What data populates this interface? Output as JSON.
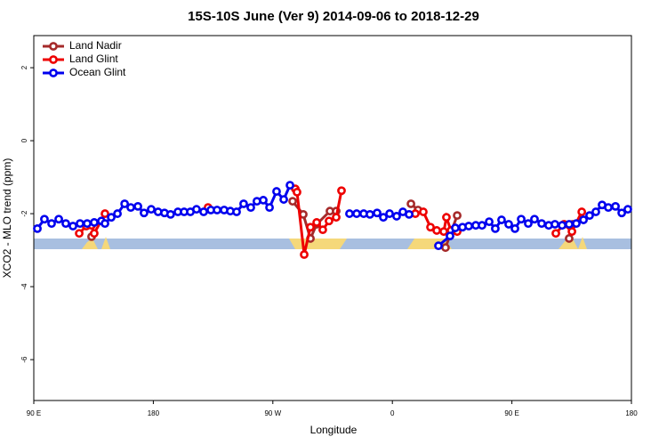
{
  "chart_data": {
    "type": "line",
    "title": "15S-10S June (Ver 9)   2014-09-06 to 2018-12-29",
    "x_label": "Longitude",
    "y_label": "XCO2 - MLO trend (ppm)",
    "xlim": [
      90,
      540
    ],
    "ylim": [
      -7.12,
      2.88
    ],
    "xticks": [
      {
        "value": 90,
        "label": "90 E"
      },
      {
        "value": 180,
        "label": "180"
      },
      {
        "value": 270,
        "label": "90 W"
      },
      {
        "value": 360,
        "label": "0"
      },
      {
        "value": 450,
        "label": "90 E"
      },
      {
        "value": 540,
        "label": "180"
      }
    ],
    "yticks": [
      -6,
      -4,
      -2,
      0,
      2
    ],
    "legend": "top-left",
    "series": [
      {
        "name": "Land Nadir",
        "color": "#a52a2a",
        "x": [
          133.5,
          200,
          284.9,
          292.9,
          298.3,
          303,
          313,
          317.7,
          340,
          374,
          379.3,
          390,
          400,
          408.8,
          450,
          493.1,
          495.8
        ],
        "values": [
          -2.63,
          null,
          -1.66,
          -2.02,
          -2.68,
          -2.29,
          -1.93,
          -1.93,
          null,
          -1.73,
          -1.9,
          null,
          -2.93,
          -2.05,
          null,
          -2.68,
          -2.29
        ]
      },
      {
        "name": "Land Glint",
        "color": "#ee0000",
        "x": [
          124.2,
          129.5,
          133.5,
          135.5,
          143.6,
          180,
          221.2,
          250,
          286.9,
          288.2,
          293.6,
          298.3,
          303,
          307.6,
          312.3,
          317.7,
          321.7,
          350,
          377.3,
          383.3,
          388.7,
          393.4,
          398.7,
          400.7,
          404.1,
          408.8,
          450,
          483.1,
          489.2,
          495.2,
          502.6
        ],
        "values": [
          -2.54,
          -2.34,
          -2.32,
          -2.54,
          -2,
          null,
          -1.83,
          null,
          -1.32,
          -1.41,
          -3.12,
          -2.37,
          -2.24,
          -2.44,
          -2.2,
          -2.1,
          -1.37,
          null,
          -2,
          -1.95,
          -2.37,
          -2.46,
          -2.49,
          -2.1,
          -2.46,
          -2.49,
          null,
          -2.54,
          -2.29,
          -2.49,
          -1.95
        ]
      },
      {
        "name": "Ocean Glint",
        "color": "#0000ee",
        "x": [
          92.7,
          98,
          103.4,
          108.8,
          114.1,
          119.5,
          124.8,
          130.2,
          135.5,
          140.9,
          143.6,
          148.3,
          153,
          158.4,
          163,
          168.4,
          173,
          178.4,
          183.6,
          188.4,
          193,
          198.5,
          203.2,
          207.9,
          212.5,
          217.9,
          223.3,
          228,
          233.3,
          238,
          242.7,
          248,
          253.4,
          258,
          262.8,
          267.5,
          272.8,
          278.2,
          282.9,
          305,
          327.7,
          333.1,
          338.4,
          343.1,
          348.5,
          353.2,
          357.9,
          363.2,
          367.9,
          372.6,
          385,
          394.7,
          403.4,
          407.4,
          412.8,
          417.5,
          422.8,
          427.5,
          432.9,
          437.5,
          442.2,
          447.6,
          452.3,
          457,
          462.3,
          467,
          472.4,
          477.7,
          482.4,
          487.8,
          493.1,
          498.5,
          503.9,
          508.5,
          513.2,
          517.9,
          522.6,
          528,
          532.7,
          537.3
        ],
        "values": [
          -2.41,
          -2.15,
          -2.27,
          -2.15,
          -2.27,
          -2.34,
          -2.27,
          -2.27,
          -2.24,
          -2.2,
          -2.27,
          -2.1,
          -2,
          -1.73,
          -1.83,
          -1.8,
          -1.98,
          -1.88,
          -1.95,
          -1.98,
          -2.02,
          -1.95,
          -1.95,
          -1.95,
          -1.88,
          -1.95,
          -1.9,
          -1.9,
          -1.9,
          -1.93,
          -1.95,
          -1.73,
          -1.83,
          -1.66,
          -1.63,
          -1.83,
          -1.39,
          -1.61,
          -1.22,
          null,
          -2,
          -2,
          -2,
          -2.02,
          -1.98,
          -2.1,
          -2,
          -2.07,
          -1.95,
          -2.02,
          null,
          -2.88,
          -2.61,
          -2.39,
          -2.37,
          -2.34,
          -2.32,
          -2.32,
          -2.22,
          -2.41,
          -2.17,
          -2.29,
          -2.41,
          -2.15,
          -2.27,
          -2.15,
          -2.27,
          -2.32,
          -2.29,
          -2.32,
          -2.29,
          -2.27,
          -2.17,
          -2.05,
          -1.95,
          -1.76,
          -1.83,
          -1.8,
          -1.98,
          -1.88
        ]
      }
    ]
  }
}
